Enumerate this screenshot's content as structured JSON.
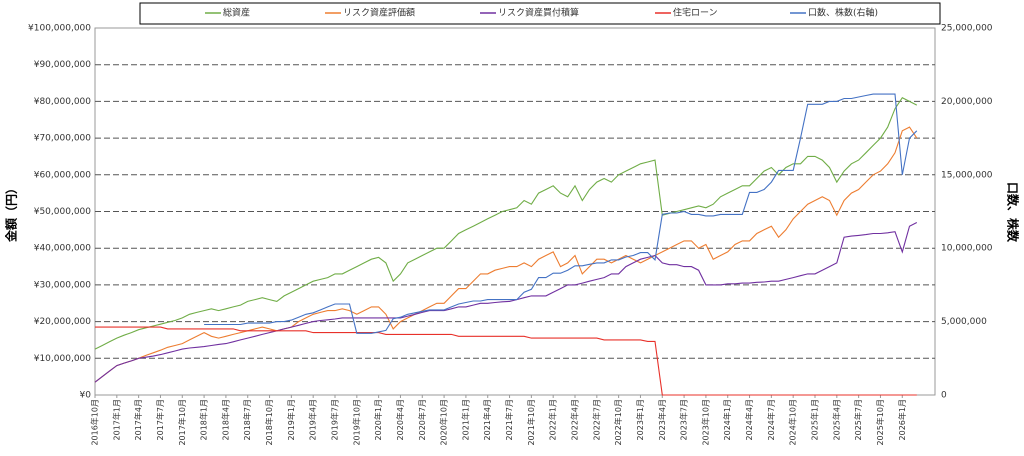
{
  "chart_data": {
    "type": "line",
    "categories": [
      "2016年10月",
      null,
      null,
      "2017年1月",
      null,
      null,
      "2017年4月",
      null,
      null,
      "2017年7月",
      null,
      null,
      "2017年10月",
      null,
      null,
      "2018年1月",
      null,
      null,
      "2018年4月",
      null,
      null,
      "2018年7月",
      null,
      null,
      "2018年10月",
      null,
      null,
      "2019年1月",
      null,
      null,
      "2019年4月",
      null,
      null,
      "2019年7月",
      null,
      null,
      "2019年10月",
      null,
      null,
      "2020年1月",
      null,
      null,
      "2020年4月",
      null,
      null,
      "2020年7月",
      null,
      null,
      "2020年10月",
      null,
      null,
      "2021年1月",
      null,
      null,
      "2021年4月",
      null,
      null,
      "2021年7月",
      null,
      null,
      "2021年10月",
      null,
      null,
      "2022年1月",
      null,
      null,
      "2022年4月",
      null,
      null,
      "2022年7月",
      null,
      null,
      "2022年10月",
      null,
      null,
      "2023年1月",
      null,
      null,
      "2023年4月",
      null,
      null,
      "2023年7月",
      null,
      null,
      "2023年10月",
      null,
      null,
      "2024年1月",
      null,
      null,
      "2024年4月",
      null,
      null,
      "2024年7月",
      null,
      null,
      "2024年10月",
      null,
      null,
      "2025年1月",
      null,
      null,
      "2025年4月",
      null,
      null,
      "2025年7月",
      null,
      null,
      "2025年10月",
      null,
      null,
      "2026年1月",
      null,
      null
    ],
    "series": [
      {
        "name": "総資産",
        "color": "#70ad47",
        "values": [
          12500000,
          13500000,
          14500000,
          15500000,
          16300000,
          17000000,
          17800000,
          18300000,
          18800000,
          19300000,
          19800000,
          20300000,
          21000000,
          22000000,
          22500000,
          23000000,
          23500000,
          23000000,
          23500000,
          24000000,
          24500000,
          25500000,
          26000000,
          26500000,
          26000000,
          25500000,
          27000000,
          28000000,
          29000000,
          30000000,
          31000000,
          31500000,
          32000000,
          33000000,
          33000000,
          34000000,
          35000000,
          36000000,
          37000000,
          37500000,
          36000000,
          31000000,
          33000000,
          36000000,
          37000000,
          38000000,
          39000000,
          40000000,
          40000000,
          42000000,
          44000000,
          45000000,
          46000000,
          47000000,
          48000000,
          49000000,
          50000000,
          50500000,
          51000000,
          53000000,
          52000000,
          55000000,
          56000000,
          57000000,
          55000000,
          54000000,
          57000000,
          53000000,
          56000000,
          58000000,
          59000000,
          58000000,
          60000000,
          61000000,
          62000000,
          63000000,
          63500000,
          64000000,
          49000000,
          49500000,
          50000000,
          50500000,
          51000000,
          51500000,
          51000000,
          52000000,
          54000000,
          55000000,
          56000000,
          57000000,
          57000000,
          59000000,
          61000000,
          62000000,
          60000000,
          62000000,
          63000000,
          63000000,
          65000000,
          65000000,
          64000000,
          62000000,
          58000000,
          61000000,
          63000000,
          64000000,
          66000000,
          68000000,
          70000000,
          73000000,
          78000000,
          81000000,
          80000000,
          79000000
        ]
      },
      {
        "name": "リスク資産評価額",
        "color": "#ed7d31",
        "values": [
          3500000,
          5000000,
          6500000,
          8000000,
          8700000,
          9300000,
          10000000,
          10800000,
          11500000,
          12200000,
          13000000,
          13500000,
          14000000,
          15000000,
          16000000,
          17000000,
          16000000,
          15500000,
          16000000,
          16500000,
          17000000,
          17500000,
          18000000,
          18500000,
          18000000,
          17500000,
          18000000,
          18500000,
          20000000,
          21000000,
          22000000,
          22500000,
          23000000,
          23000000,
          23500000,
          23000000,
          22000000,
          23000000,
          24000000,
          24000000,
          22000000,
          18000000,
          20000000,
          21000000,
          22000000,
          23000000,
          24000000,
          25000000,
          25000000,
          27000000,
          29000000,
          29000000,
          31000000,
          33000000,
          33000000,
          34000000,
          34500000,
          35000000,
          35000000,
          36000000,
          35000000,
          37000000,
          38000000,
          39000000,
          35000000,
          36000000,
          38000000,
          33000000,
          35000000,
          37000000,
          37000000,
          36000000,
          37000000,
          38000000,
          37000000,
          36000000,
          37000000,
          38000000,
          39000000,
          40000000,
          41000000,
          42000000,
          42000000,
          40000000,
          41000000,
          37000000,
          38000000,
          39000000,
          41000000,
          42000000,
          42000000,
          44000000,
          45000000,
          46000000,
          43000000,
          45000000,
          48000000,
          50000000,
          52000000,
          53000000,
          54000000,
          53000000,
          49000000,
          53000000,
          55000000,
          56000000,
          58000000,
          60000000,
          61000000,
          63000000,
          66000000,
          72000000,
          73000000,
          70000000
        ]
      },
      {
        "name": "リスク資産買付積算",
        "color": "#7030a0",
        "values": [
          3500000,
          5000000,
          6500000,
          8000000,
          8700000,
          9300000,
          10000000,
          10300000,
          10600000,
          11000000,
          11500000,
          12000000,
          12500000,
          12800000,
          13000000,
          13200000,
          13500000,
          13800000,
          14000000,
          14500000,
          15000000,
          15500000,
          16000000,
          16500000,
          17000000,
          17500000,
          18000000,
          18500000,
          19000000,
          19500000,
          20000000,
          20300000,
          20500000,
          20700000,
          21000000,
          21000000,
          21000000,
          21000000,
          21000000,
          21000000,
          21000000,
          21000000,
          21000000,
          21500000,
          22000000,
          22500000,
          23000000,
          23000000,
          23000000,
          23500000,
          24000000,
          24000000,
          24500000,
          25000000,
          25000000,
          25200000,
          25400000,
          25500000,
          26000000,
          26500000,
          27000000,
          27000000,
          27000000,
          28000000,
          29000000,
          30000000,
          30000000,
          30500000,
          31000000,
          31500000,
          32000000,
          33000000,
          33000000,
          35000000,
          36000000,
          37000000,
          37500000,
          38000000,
          36000000,
          35500000,
          35500000,
          35000000,
          35000000,
          34000000,
          30000000,
          30000000,
          30000000,
          30300000,
          30300000,
          30500000,
          30500000,
          30700000,
          30800000,
          31000000,
          31000000,
          31500000,
          32000000,
          32500000,
          33000000,
          33000000,
          34000000,
          35000000,
          36000000,
          43000000,
          43300000,
          43500000,
          43700000,
          44000000,
          44000000,
          44200000,
          44500000,
          39000000,
          46000000,
          47000000
        ]
      },
      {
        "name": "住宅ローン",
        "color": "#e8312a",
        "values": [
          18500000,
          18500000,
          18500000,
          18500000,
          18500000,
          18500000,
          18500000,
          18500000,
          18500000,
          18500000,
          18000000,
          18000000,
          18000000,
          18000000,
          18000000,
          18000000,
          18000000,
          18000000,
          18000000,
          18000000,
          17500000,
          17500000,
          17500000,
          17500000,
          17500000,
          17500000,
          17500000,
          17500000,
          17500000,
          17500000,
          17000000,
          17000000,
          17000000,
          17000000,
          17000000,
          17000000,
          17000000,
          17000000,
          17000000,
          17000000,
          16500000,
          16500000,
          16500000,
          16500000,
          16500000,
          16500000,
          16500000,
          16500000,
          16500000,
          16500000,
          16000000,
          16000000,
          16000000,
          16000000,
          16000000,
          16000000,
          16000000,
          16000000,
          16000000,
          16000000,
          15500000,
          15500000,
          15500000,
          15500000,
          15500000,
          15500000,
          15500000,
          15500000,
          15500000,
          15500000,
          15000000,
          15000000,
          15000000,
          15000000,
          15000000,
          15000000,
          14600000,
          14600000,
          0,
          0,
          0,
          0,
          0,
          0,
          0,
          0,
          0,
          0,
          0,
          0,
          0,
          0,
          0,
          0,
          0,
          0,
          0,
          0,
          0,
          0,
          0,
          0,
          0,
          0,
          0,
          0,
          0,
          0,
          0,
          0,
          0,
          0,
          0,
          0
        ]
      },
      {
        "name": "口数、株数(右軸)",
        "color": "#4472c4",
        "axis": "y2",
        "values": [
          null,
          null,
          null,
          null,
          null,
          null,
          null,
          null,
          null,
          null,
          null,
          null,
          null,
          null,
          null,
          4800000,
          4800000,
          4800000,
          4800000,
          4800000,
          4800000,
          4900000,
          4900000,
          4900000,
          4900000,
          5000000,
          5000000,
          5100000,
          5300000,
          5500000,
          5600000,
          5800000,
          6000000,
          6200000,
          6200000,
          6200000,
          4200000,
          4200000,
          4200000,
          4300000,
          4400000,
          5200000,
          5300000,
          5500000,
          5600000,
          5700000,
          5800000,
          5800000,
          5800000,
          6000000,
          6200000,
          6300000,
          6400000,
          6400000,
          6500000,
          6500000,
          6500000,
          6500000,
          6500000,
          7000000,
          7200000,
          8000000,
          8000000,
          8300000,
          8300000,
          8500000,
          8800000,
          8800000,
          8900000,
          9000000,
          9000000,
          9200000,
          9200000,
          9400000,
          9500000,
          9700000,
          9700000,
          9200000,
          12300000,
          12400000,
          12400000,
          12500000,
          12300000,
          12300000,
          12200000,
          12200000,
          12300000,
          12300000,
          12300000,
          12300000,
          13800000,
          13800000,
          14000000,
          14500000,
          15300000,
          15300000,
          15300000,
          17500000,
          19800000,
          19800000,
          19800000,
          20000000,
          20000000,
          20200000,
          20200000,
          20300000,
          20400000,
          20500000,
          20500000,
          20500000,
          20500000,
          15000000,
          17500000,
          18000000
        ]
      }
    ],
    "ylabel": "金額（円）",
    "y2label": "口数、株数",
    "ylim": [
      0,
      100000000
    ],
    "yticks": [
      {
        "value": 0,
        "label": "¥0"
      },
      {
        "value": 10000000,
        "label": "¥10,000,000"
      },
      {
        "value": 20000000,
        "label": "¥20,000,000"
      },
      {
        "value": 30000000,
        "label": "¥30,000,000"
      },
      {
        "value": 40000000,
        "label": "¥40,000,000"
      },
      {
        "value": 50000000,
        "label": "¥50,000,000"
      },
      {
        "value": 60000000,
        "label": "¥60,000,000"
      },
      {
        "value": 70000000,
        "label": "¥70,000,000"
      },
      {
        "value": 80000000,
        "label": "¥80,000,000"
      },
      {
        "value": 90000000,
        "label": "¥90,000,000"
      },
      {
        "value": 100000000,
        "label": "¥100,000,000"
      }
    ],
    "y2lim": [
      0,
      25000000
    ],
    "y2ticks": [
      0,
      {
        "value": 5000000,
        "label": "5,000,000"
      },
      {
        "value": 10000000,
        "label": "10,000,000"
      },
      {
        "value": 15000000,
        "label": "15,000,000"
      },
      {
        "value": 20000000,
        "label": "20,000,000"
      },
      {
        "value": 25000000,
        "label": "25,000,000"
      }
    ],
    "grid": true,
    "legend": "top"
  }
}
